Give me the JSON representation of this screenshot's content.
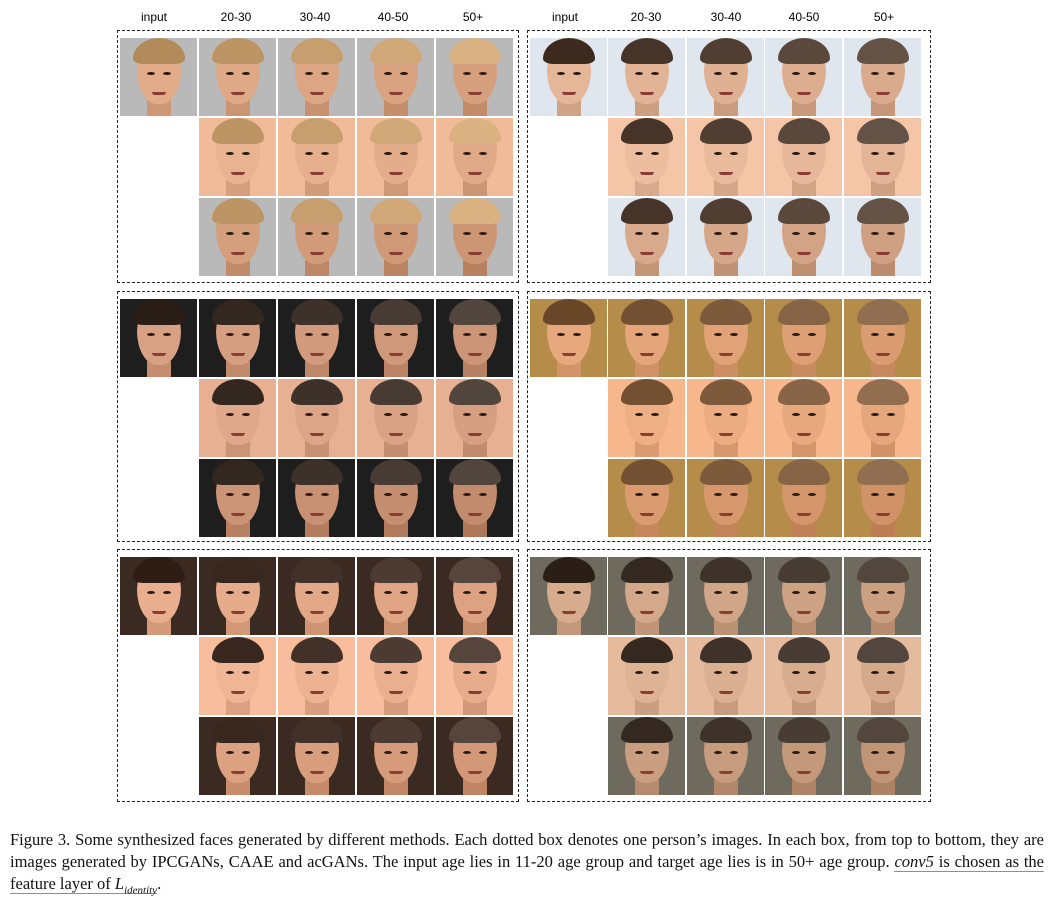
{
  "headers": {
    "left": [
      "input",
      "20-30",
      "30-40",
      "40-50",
      "50+"
    ],
    "right": [
      "input",
      "20-30",
      "30-40",
      "40-50",
      "50+"
    ]
  },
  "figure": {
    "label": "Figure 3.",
    "caption_text": "Some synthesized faces generated by different methods. Each dotted box denotes one person’s images. In each box, from top to bottom, they are images generated by IPCGANs, CAAE and acGANs. The input age lies in 11-20 age group and target age lies is in 50+ age group.",
    "conv_term": "conv5",
    "caption_tail": " is chosen as the feature layer of ",
    "loss_symbol": "L",
    "loss_subscript": "identity",
    "caption_end": "."
  }
}
